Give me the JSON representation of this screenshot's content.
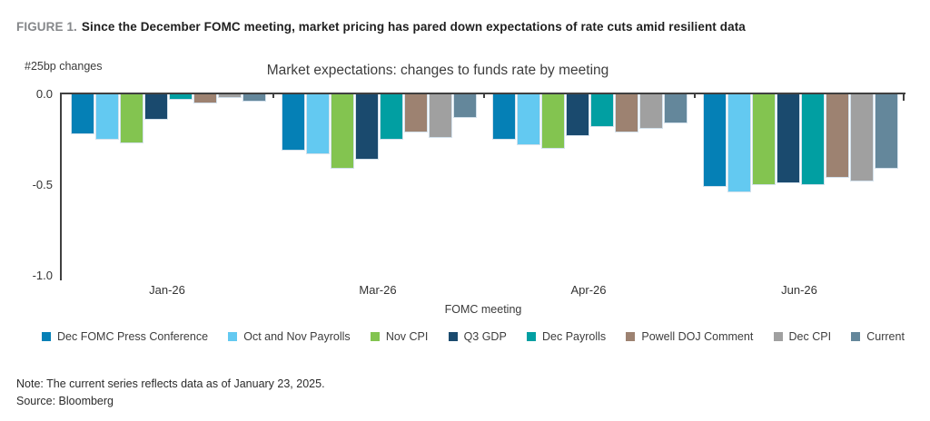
{
  "header": {
    "label": "FIGURE 1.",
    "title": "Since the December FOMC meeting, market pricing has pared down expectations of rate cuts amid resilient data"
  },
  "chart_data": {
    "type": "bar",
    "title": "Market expectations: changes to funds rate by meeting",
    "y_axis_label": "#25bp changes",
    "xlabel": "FOMC meeting",
    "ylim": [
      -1.0,
      0.0
    ],
    "grid": false,
    "legend_position": "bottom",
    "y_ticks": [
      {
        "label": "0.0",
        "value": 0.0
      },
      {
        "label": "-0.5",
        "value": -0.5
      },
      {
        "label": "-1.0",
        "value": -1.0
      }
    ],
    "categories": [
      "Jan-26",
      "Mar-26",
      "Apr-26",
      "Jun-26"
    ],
    "series": [
      {
        "name": "Dec FOMC Press Conference",
        "color": "#0580b6",
        "values": [
          -0.22,
          -0.31,
          -0.25,
          -0.51
        ]
      },
      {
        "name": "Oct and Nov Payrolls",
        "color": "#63c9f1",
        "values": [
          -0.25,
          -0.33,
          -0.28,
          -0.54
        ]
      },
      {
        "name": "Nov CPI",
        "color": "#83c450",
        "values": [
          -0.27,
          -0.41,
          -0.3,
          -0.5
        ]
      },
      {
        "name": "Q3 GDP",
        "color": "#1a4a6e",
        "values": [
          -0.14,
          -0.36,
          -0.23,
          -0.49
        ]
      },
      {
        "name": "Dec Payrolls",
        "color": "#019fa2",
        "values": [
          -0.03,
          -0.25,
          -0.18,
          -0.5
        ]
      },
      {
        "name": "Powell DOJ Comment",
        "color": "#9d8271",
        "values": [
          -0.05,
          -0.21,
          -0.21,
          -0.46
        ]
      },
      {
        "name": "Dec CPI",
        "color": "#a0a0a0",
        "values": [
          -0.02,
          -0.24,
          -0.19,
          -0.48
        ]
      },
      {
        "name": "Current",
        "color": "#64879b",
        "values": [
          -0.04,
          -0.13,
          -0.16,
          -0.41
        ]
      }
    ]
  },
  "footer": {
    "note": "Note: The current series reflects data as of January 23, 2025.",
    "source": "Source: Bloomberg"
  }
}
